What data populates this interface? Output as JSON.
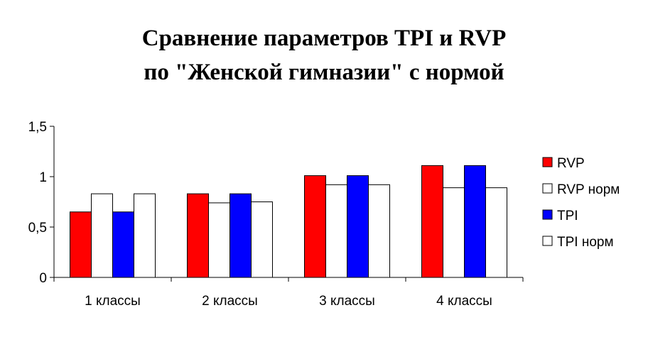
{
  "chart_data": {
    "type": "bar",
    "title": [
      "Сравнение параметров TPI и RVP",
      "по \"Женской гимназии\" с нормой"
    ],
    "categories": [
      "1 классы",
      "2 классы",
      "3 классы",
      "4 классы"
    ],
    "series": [
      {
        "name": "RVP",
        "color": "#ff0000",
        "values": [
          0.65,
          0.83,
          1.01,
          1.11
        ]
      },
      {
        "name": "RVP норм",
        "color": "#ffffff",
        "values": [
          0.83,
          0.74,
          0.92,
          0.89
        ]
      },
      {
        "name": "TPI",
        "color": "#0000ff",
        "values": [
          0.65,
          0.83,
          1.01,
          1.11
        ]
      },
      {
        "name": "TPI норм",
        "color": "#ffffff",
        "values": [
          0.83,
          0.75,
          0.92,
          0.89
        ]
      }
    ],
    "ylim": [
      0,
      1.5
    ],
    "yticks": [
      0,
      0.5,
      1,
      1.5
    ],
    "ytick_labels": [
      "0",
      "0,5",
      "1",
      "1,5"
    ],
    "xlabel": "",
    "ylabel": "",
    "grid": false,
    "legend_position": "right"
  }
}
